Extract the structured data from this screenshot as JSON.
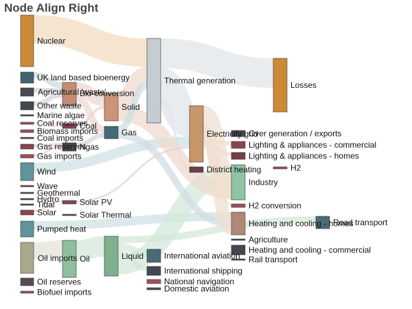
{
  "chart_data": {
    "type": "sankey",
    "title": "Node Align Right",
    "nodes": [
      {
        "name": "Nuclear",
        "color": "#cd8a34"
      },
      {
        "name": "UK land based bioenergy",
        "color": "#41646e"
      },
      {
        "name": "Agricultural 'waste'",
        "color": "#4a4a52"
      },
      {
        "name": "Other waste",
        "color": "#43484f"
      },
      {
        "name": "Marine algae",
        "color": "#4e4e4e"
      },
      {
        "name": "Coal reserves",
        "color": "#a0525a"
      },
      {
        "name": "Biomass imports",
        "color": "#a0525a"
      },
      {
        "name": "Coal imports",
        "color": "#5a3c40"
      },
      {
        "name": "Gas reserves",
        "color": "#8a4450"
      },
      {
        "name": "Gas imports",
        "color": "#a0525a"
      },
      {
        "name": "Wind",
        "color": "#5e959a"
      },
      {
        "name": "Wave",
        "color": "#6e4a50"
      },
      {
        "name": "Geothermal",
        "color": "#4e4e4e"
      },
      {
        "name": "Hydro",
        "color": "#4e4e4e"
      },
      {
        "name": "Tidal",
        "color": "#4e4e4e"
      },
      {
        "name": "Solar",
        "color": "#8a4450"
      },
      {
        "name": "Pumped heat",
        "color": "#5e959a"
      },
      {
        "name": "Oil imports",
        "color": "#aaa98c"
      },
      {
        "name": "Oil reserves",
        "color": "#5a4a52"
      },
      {
        "name": "Biofuel imports",
        "color": "#a0525a"
      },
      {
        "name": "Bio-conversion",
        "color": "#c48d76"
      },
      {
        "name": "Coal",
        "color": "#8a4450"
      },
      {
        "name": "Ngas",
        "color": "#4a4a52"
      },
      {
        "name": "Solar PV",
        "color": "#8a4450"
      },
      {
        "name": "Solar Thermal",
        "color": "#4e4e4e"
      },
      {
        "name": "Oil",
        "color": "#8fbf9f"
      },
      {
        "name": "Solid",
        "color": "#cf9477"
      },
      {
        "name": "Gas",
        "color": "#43697a"
      },
      {
        "name": "Liquid",
        "color": "#80b08c"
      },
      {
        "name": "Thermal generation",
        "color": "#c5ccd2"
      },
      {
        "name": "International aviation",
        "color": "#4a6b78"
      },
      {
        "name": "International shipping",
        "color": "#43484f"
      },
      {
        "name": "National navigation",
        "color": "#a0525a"
      },
      {
        "name": "Domestic aviation",
        "color": "#4e4e4e"
      },
      {
        "name": "Electricity grid",
        "color": "#c7976a"
      },
      {
        "name": "District heating",
        "color": "#6e4047"
      },
      {
        "name": "Over generation / exports",
        "color": "#4a4a52"
      },
      {
        "name": "Lighting & appliances - commercial",
        "color": "#8a4450"
      },
      {
        "name": "Lighting & appliances - homes",
        "color": "#7a3e46"
      },
      {
        "name": "Industry",
        "color": "#8fc4a4"
      },
      {
        "name": "H2 conversion",
        "color": "#a0525a"
      },
      {
        "name": "Heating and cooling - homes",
        "color": "#b08878"
      },
      {
        "name": "Agriculture",
        "color": "#4e4e4e"
      },
      {
        "name": "Heating and cooling - commercial",
        "color": "#43484f"
      },
      {
        "name": "Rail transport",
        "color": "#4e4e4e"
      },
      {
        "name": "Losses",
        "color": "#cd8a34"
      },
      {
        "name": "H2",
        "color": "#a0525a"
      },
      {
        "name": "Road transport",
        "color": "#4a6b78"
      }
    ],
    "links": [
      {
        "source": "Nuclear",
        "target": "Thermal generation",
        "color": "#f2dcc0"
      },
      {
        "source": "Thermal generation",
        "target": "Losses",
        "color": "#e2e6ea"
      },
      {
        "source": "Thermal generation",
        "target": "Electricity grid",
        "color": "#e2e6ea"
      },
      {
        "source": "Thermal generation",
        "target": "District heating",
        "color": "#e2e6ea"
      },
      {
        "source": "Wind",
        "target": "Electricity grid",
        "color": "#cfe2e3"
      },
      {
        "source": "Pumped heat",
        "target": "Heating and cooling - homes",
        "color": "#cfe2e3"
      },
      {
        "source": "Oil imports",
        "target": "Oil",
        "color": "#e3e3d6"
      },
      {
        "source": "Oil",
        "target": "Liquid",
        "color": "#d3e8da"
      },
      {
        "source": "Liquid",
        "target": "Road transport",
        "color": "#d3e8da"
      },
      {
        "source": "Liquid",
        "target": "International aviation",
        "color": "#d3e8da"
      },
      {
        "source": "Liquid",
        "target": "International shipping",
        "color": "#d3e8da"
      },
      {
        "source": "Liquid",
        "target": "Industry",
        "color": "#d3e8da"
      },
      {
        "source": "UK land based bioenergy",
        "target": "Bio-conversion",
        "color": "#d0dadd"
      },
      {
        "source": "Agricultural 'waste'",
        "target": "Bio-conversion",
        "color": "#d6d6da"
      },
      {
        "source": "Other waste",
        "target": "Bio-conversion",
        "color": "#d6d6da"
      },
      {
        "source": "Bio-conversion",
        "target": "Solid",
        "color": "#ecd8cf"
      },
      {
        "source": "Bio-conversion",
        "target": "Gas",
        "color": "#ecd8cf"
      },
      {
        "source": "Solid",
        "target": "Thermal generation",
        "color": "#efd9cd"
      },
      {
        "source": "Solid",
        "target": "Industry",
        "color": "#efd9cd"
      },
      {
        "source": "Gas",
        "target": "Thermal generation",
        "color": "#d0dde3"
      },
      {
        "source": "Gas",
        "target": "Heating and cooling - homes",
        "color": "#d0dde3"
      },
      {
        "source": "Coal reserves",
        "target": "Coal",
        "color": "#e6d1d3"
      },
      {
        "source": "Coal imports",
        "target": "Coal",
        "color": "#e6d1d3"
      },
      {
        "source": "Coal",
        "target": "Solid",
        "color": "#e6d1d3"
      },
      {
        "source": "Gas reserves",
        "target": "Ngas",
        "color": "#e6d1d3"
      },
      {
        "source": "Gas imports",
        "target": "Ngas",
        "color": "#e6d1d3"
      },
      {
        "source": "Ngas",
        "target": "Gas",
        "color": "#d6d6da"
      },
      {
        "source": "Electricity grid",
        "target": "Industry",
        "color": "#f0dfcf"
      },
      {
        "source": "Electricity grid",
        "target": "Heating and cooling - homes",
        "color": "#f0dfcf"
      },
      {
        "source": "Electricity grid",
        "target": "Lighting & appliances - commercial",
        "color": "#f0dfcf"
      },
      {
        "source": "Electricity grid",
        "target": "Lighting & appliances - homes",
        "color": "#f0dfcf"
      },
      {
        "source": "Electricity grid",
        "target": "H2 conversion",
        "color": "#f0dfcf"
      },
      {
        "source": "Solar",
        "target": "Solar PV",
        "color": "#e6d1d3"
      },
      {
        "source": "Solar PV",
        "target": "Electricity grid",
        "color": "#e6d1d3"
      }
    ]
  }
}
